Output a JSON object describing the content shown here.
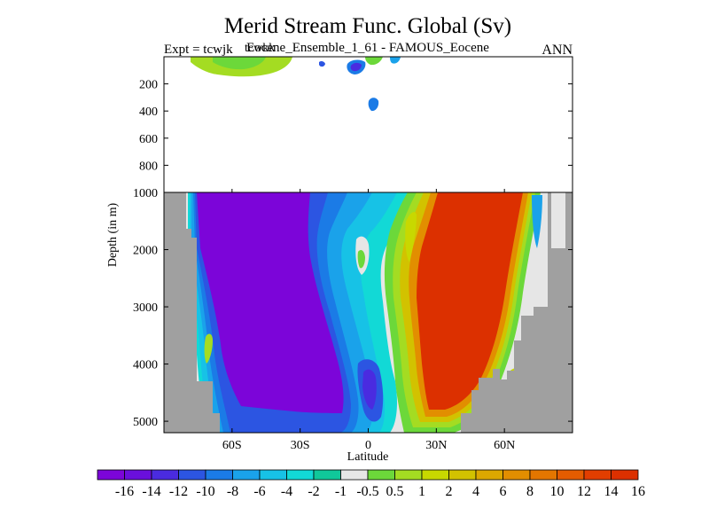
{
  "chart_data": {
    "type": "heatmap",
    "title": "Merid Stream Func. Global (Sv)",
    "subtitle_left": "Expt = tcwjk",
    "subtitle_left_overlap": "tcwkk",
    "subtitle_center": "Eocene_Ensemble_1_61 - FAMOUS_Eocene",
    "subtitle_right": "ANN",
    "xlabel": "Latitude",
    "ylabel": "Depth (in m)",
    "xlim": [
      -90,
      90
    ],
    "x_ticks": [
      {
        "value": -60,
        "label": "60S"
      },
      {
        "value": -30,
        "label": "30S"
      },
      {
        "value": 0,
        "label": "0"
      },
      {
        "value": 30,
        "label": "30N"
      },
      {
        "value": 60,
        "label": "60N"
      }
    ],
    "upper_ylim": [
      0,
      1000
    ],
    "upper_y_ticks": [
      "200",
      "400",
      "600",
      "800"
    ],
    "lower_ylim": [
      1000,
      5200
    ],
    "lower_y_ticks": [
      "1000",
      "2000",
      "3000",
      "4000",
      "5000"
    ],
    "colorbar": {
      "labels": [
        "-16",
        "-14",
        "-12",
        "-10",
        "-8",
        "-6",
        "-4",
        "-2",
        "-1",
        "-0.5",
        "0.5",
        "1",
        "2",
        "4",
        "6",
        "8",
        "10",
        "12",
        "14",
        "16"
      ],
      "colors": [
        "#7c05d9",
        "#6a0fdc",
        "#4a2be0",
        "#2c55e2",
        "#1b7be6",
        "#1aa2ea",
        "#17c2e6",
        "#12d9d6",
        "#10c89a",
        "#e6e6e6",
        "#6cd83a",
        "#a4dc22",
        "#c8d800",
        "#d2c200",
        "#dca800",
        "#e28e00",
        "#e47600",
        "#e45c00",
        "#e23e00",
        "#dc3000"
      ],
      "colors_labels_alignment": "boundaries"
    },
    "land_color": "#a0a0a0",
    "features": [
      {
        "name": "southern-overturning-cell",
        "lat_range": [
          -75,
          -10
        ],
        "depth_range": [
          1000,
          5000
        ],
        "value": -16
      },
      {
        "name": "northern-overturning-cell",
        "lat_range": [
          10,
          70
        ],
        "depth_range": [
          1000,
          4600
        ],
        "value": 16
      }
    ]
  }
}
